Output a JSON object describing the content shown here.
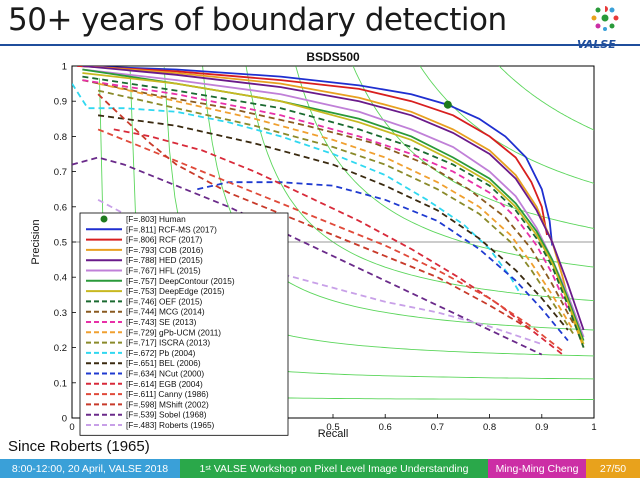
{
  "slide": {
    "title": "50+ years of boundary detection",
    "caption": "Since Roberts (1965)",
    "logo_text": "VALSE"
  },
  "footer": {
    "date": "8:00-12:00, 20 April, VALSE 2018",
    "workshop_prefix": "1",
    "workshop_sup": "st",
    "workshop_rest": " VALSE Workshop on Pixel Level Image Understanding",
    "author": "Ming-Ming Cheng",
    "page": "27/50",
    "colors": {
      "date": "#3aa0d8",
      "workshop": "#2aa84a",
      "author": "#cc2ea5",
      "page": "#e8a21c"
    }
  },
  "chart_data": {
    "type": "line",
    "title": "BSDS500",
    "xlabel": "Recall",
    "ylabel": "Precision",
    "xlim": [
      0,
      1
    ],
    "ylim": [
      0,
      1
    ],
    "xticks": [
      "0",
      "0.1",
      "0.2",
      "0.3",
      "0.4",
      "0.5",
      "0.6",
      "0.7",
      "0.8",
      "0.9",
      "1"
    ],
    "yticks": [
      "0",
      "0.1",
      "0.2",
      "0.3",
      "0.4",
      "0.5",
      "0.6",
      "0.7",
      "0.8",
      "0.9",
      "1"
    ],
    "iso_f_levels": [
      0.1,
      0.2,
      0.3,
      0.4,
      0.5,
      0.6,
      0.7,
      0.8,
      0.9
    ],
    "legend_position": "bottom-left",
    "human_point": {
      "x": 0.72,
      "y": 0.89
    },
    "series": [
      {
        "name": "[F=.803] Human",
        "style": "marker",
        "color": "#1e7a1e",
        "points": []
      },
      {
        "name": "[F=.811] RCF-MS (2017)",
        "style": "solid",
        "color": "#1f2fd0",
        "points": [
          [
            0.01,
            1
          ],
          [
            0.2,
            0.99
          ],
          [
            0.4,
            0.97
          ],
          [
            0.55,
            0.945
          ],
          [
            0.65,
            0.92
          ],
          [
            0.72,
            0.89
          ],
          [
            0.78,
            0.85
          ],
          [
            0.83,
            0.8
          ],
          [
            0.87,
            0.74
          ],
          [
            0.9,
            0.65
          ],
          [
            0.915,
            0.56
          ],
          [
            0.92,
            0.49
          ]
        ]
      },
      {
        "name": "[F=.806] RCF (2017)",
        "style": "solid",
        "color": "#d81f1f",
        "points": [
          [
            0.01,
            1
          ],
          [
            0.2,
            0.985
          ],
          [
            0.4,
            0.96
          ],
          [
            0.55,
            0.935
          ],
          [
            0.65,
            0.9
          ],
          [
            0.73,
            0.86
          ],
          [
            0.8,
            0.8
          ],
          [
            0.85,
            0.74
          ],
          [
            0.88,
            0.67
          ],
          [
            0.9,
            0.6
          ],
          [
            0.91,
            0.52
          ]
        ]
      },
      {
        "name": "[F=.793] COB (2016)",
        "style": "solid",
        "color": "#e8a020",
        "points": [
          [
            0.02,
            1
          ],
          [
            0.2,
            0.98
          ],
          [
            0.4,
            0.95
          ],
          [
            0.55,
            0.91
          ],
          [
            0.65,
            0.87
          ],
          [
            0.73,
            0.82
          ],
          [
            0.8,
            0.76
          ],
          [
            0.85,
            0.69
          ],
          [
            0.89,
            0.6
          ],
          [
            0.92,
            0.5
          ],
          [
            0.94,
            0.4
          ],
          [
            0.96,
            0.28
          ],
          [
            0.98,
            0.2
          ]
        ]
      },
      {
        "name": "[F=.788] HED (2015)",
        "style": "solid",
        "color": "#6a1a8a",
        "points": [
          [
            0.02,
            1
          ],
          [
            0.2,
            0.975
          ],
          [
            0.4,
            0.94
          ],
          [
            0.55,
            0.9
          ],
          [
            0.65,
            0.86
          ],
          [
            0.73,
            0.81
          ],
          [
            0.8,
            0.75
          ],
          [
            0.85,
            0.68
          ],
          [
            0.89,
            0.59
          ],
          [
            0.92,
            0.5
          ],
          [
            0.95,
            0.38
          ],
          [
            0.98,
            0.25
          ]
        ]
      },
      {
        "name": "[F=.767] HFL (2015)",
        "style": "solid",
        "color": "#c080d8",
        "points": [
          [
            0.02,
            0.99
          ],
          [
            0.2,
            0.96
          ],
          [
            0.4,
            0.92
          ],
          [
            0.55,
            0.87
          ],
          [
            0.65,
            0.82
          ],
          [
            0.73,
            0.77
          ],
          [
            0.8,
            0.7
          ],
          [
            0.85,
            0.63
          ],
          [
            0.89,
            0.54
          ],
          [
            0.92,
            0.45
          ],
          [
            0.95,
            0.35
          ],
          [
            0.98,
            0.23
          ]
        ]
      },
      {
        "name": "[F=.757] DeepContour (2015)",
        "style": "solid",
        "color": "#2a9a3a",
        "points": [
          [
            0.02,
            0.99
          ],
          [
            0.2,
            0.95
          ],
          [
            0.4,
            0.9
          ],
          [
            0.55,
            0.85
          ],
          [
            0.65,
            0.8
          ],
          [
            0.73,
            0.74
          ],
          [
            0.8,
            0.68
          ],
          [
            0.85,
            0.61
          ],
          [
            0.89,
            0.53
          ],
          [
            0.92,
            0.45
          ],
          [
            0.95,
            0.34
          ],
          [
            0.98,
            0.22
          ]
        ]
      },
      {
        "name": "[F=.753] DeepEdge (2015)",
        "style": "solid",
        "color": "#c8b820",
        "points": [
          [
            0.02,
            0.98
          ],
          [
            0.2,
            0.95
          ],
          [
            0.4,
            0.9
          ],
          [
            0.55,
            0.84
          ],
          [
            0.65,
            0.79
          ],
          [
            0.73,
            0.73
          ],
          [
            0.8,
            0.67
          ],
          [
            0.85,
            0.6
          ],
          [
            0.89,
            0.52
          ],
          [
            0.92,
            0.44
          ],
          [
            0.95,
            0.33
          ],
          [
            0.98,
            0.21
          ]
        ]
      },
      {
        "name": "[F=.746] OEF (2015)",
        "style": "dashed",
        "color": "#1a6a30",
        "points": [
          [
            0.02,
            0.97
          ],
          [
            0.2,
            0.93
          ],
          [
            0.4,
            0.88
          ],
          [
            0.55,
            0.82
          ],
          [
            0.65,
            0.77
          ],
          [
            0.73,
            0.72
          ],
          [
            0.8,
            0.66
          ],
          [
            0.85,
            0.59
          ],
          [
            0.89,
            0.51
          ],
          [
            0.92,
            0.43
          ],
          [
            0.95,
            0.32
          ],
          [
            0.98,
            0.2
          ]
        ]
      },
      {
        "name": "[F=.744] MCG (2014)",
        "style": "dashed",
        "color": "#8a5a20",
        "points": [
          [
            0.02,
            0.96
          ],
          [
            0.15,
            0.92
          ],
          [
            0.3,
            0.88
          ],
          [
            0.45,
            0.83
          ],
          [
            0.58,
            0.78
          ],
          [
            0.68,
            0.72
          ],
          [
            0.76,
            0.65
          ],
          [
            0.83,
            0.57
          ],
          [
            0.88,
            0.48
          ],
          [
            0.92,
            0.38
          ],
          [
            0.96,
            0.27
          ]
        ]
      },
      {
        "name": "[F=.743] SE (2013)",
        "style": "dashed",
        "color": "#e830a8",
        "points": [
          [
            0.02,
            0.96
          ],
          [
            0.2,
            0.92
          ],
          [
            0.4,
            0.86
          ],
          [
            0.55,
            0.8
          ],
          [
            0.65,
            0.75
          ],
          [
            0.73,
            0.7
          ],
          [
            0.8,
            0.64
          ],
          [
            0.85,
            0.57
          ],
          [
            0.89,
            0.49
          ],
          [
            0.92,
            0.41
          ],
          [
            0.95,
            0.31
          ]
        ]
      },
      {
        "name": "[F=.729] gPb-UCM (2011)",
        "style": "dashed",
        "color": "#f0a030",
        "points": [
          [
            0.05,
            0.95
          ],
          [
            0.2,
            0.9
          ],
          [
            0.35,
            0.85
          ],
          [
            0.5,
            0.79
          ],
          [
            0.6,
            0.74
          ],
          [
            0.7,
            0.67
          ],
          [
            0.78,
            0.6
          ],
          [
            0.84,
            0.52
          ],
          [
            0.88,
            0.44
          ],
          [
            0.92,
            0.35
          ],
          [
            0.96,
            0.25
          ]
        ]
      },
      {
        "name": "[F=.717] ISCRA (2013)",
        "style": "dashed",
        "color": "#8a8a2a",
        "points": [
          [
            0.05,
            0.93
          ],
          [
            0.2,
            0.88
          ],
          [
            0.35,
            0.83
          ],
          [
            0.5,
            0.77
          ],
          [
            0.6,
            0.72
          ],
          [
            0.7,
            0.65
          ],
          [
            0.78,
            0.58
          ],
          [
            0.84,
            0.5
          ],
          [
            0.88,
            0.42
          ],
          [
            0.92,
            0.33
          ],
          [
            0.96,
            0.24
          ]
        ]
      },
      {
        "name": "[F=.672] Pb (2004)",
        "style": "dashed",
        "color": "#30d8f0",
        "points": [
          [
            0.0,
            0.95
          ],
          [
            0.03,
            0.88
          ],
          [
            0.1,
            0.88
          ],
          [
            0.2,
            0.87
          ],
          [
            0.3,
            0.84
          ],
          [
            0.4,
            0.8
          ],
          [
            0.5,
            0.75
          ],
          [
            0.6,
            0.69
          ],
          [
            0.68,
            0.62
          ],
          [
            0.75,
            0.55
          ],
          [
            0.8,
            0.48
          ],
          [
            0.84,
            0.4
          ],
          [
            0.86,
            0.35
          ]
        ]
      },
      {
        "name": "[F=.651] BEL (2006)",
        "style": "dashed",
        "color": "#3a2a10",
        "points": [
          [
            0.05,
            0.86
          ],
          [
            0.2,
            0.83
          ],
          [
            0.35,
            0.78
          ],
          [
            0.5,
            0.72
          ],
          [
            0.6,
            0.66
          ],
          [
            0.7,
            0.59
          ],
          [
            0.78,
            0.51
          ],
          [
            0.85,
            0.42
          ],
          [
            0.9,
            0.34
          ],
          [
            0.95,
            0.25
          ]
        ]
      },
      {
        "name": "[F=.634] NCut (2000)",
        "style": "dashed",
        "color": "#1f3ad0",
        "points": [
          [
            0.24,
            0.65
          ],
          [
            0.3,
            0.67
          ],
          [
            0.4,
            0.67
          ],
          [
            0.5,
            0.66
          ],
          [
            0.6,
            0.62
          ],
          [
            0.7,
            0.56
          ],
          [
            0.78,
            0.48
          ],
          [
            0.85,
            0.39
          ],
          [
            0.9,
            0.31
          ],
          [
            0.95,
            0.22
          ]
        ]
      },
      {
        "name": "[F=.614] EGB (2004)",
        "style": "dashed",
        "color": "#d82a3a",
        "points": [
          [
            0.08,
            0.82
          ],
          [
            0.15,
            0.8
          ],
          [
            0.25,
            0.76
          ],
          [
            0.35,
            0.7
          ],
          [
            0.45,
            0.63
          ],
          [
            0.55,
            0.56
          ],
          [
            0.65,
            0.48
          ],
          [
            0.74,
            0.4
          ],
          [
            0.82,
            0.32
          ],
          [
            0.88,
            0.25
          ],
          [
            0.94,
            0.18
          ]
        ]
      },
      {
        "name": "[F=.611] Canny (1986)",
        "style": "dashed",
        "color": "#e04a3a",
        "points": [
          [
            0.05,
            0.82
          ],
          [
            0.1,
            0.79
          ],
          [
            0.2,
            0.73
          ],
          [
            0.3,
            0.67
          ],
          [
            0.4,
            0.61
          ],
          [
            0.5,
            0.55
          ],
          [
            0.6,
            0.49
          ],
          [
            0.7,
            0.42
          ],
          [
            0.8,
            0.34
          ],
          [
            0.88,
            0.26
          ],
          [
            0.94,
            0.19
          ]
        ]
      },
      {
        "name": "[F=.598] MShift (2002)",
        "style": "dashed",
        "color": "#c83a2a",
        "points": [
          [
            0.05,
            0.92
          ],
          [
            0.1,
            0.85
          ],
          [
            0.15,
            0.78
          ],
          [
            0.2,
            0.72
          ],
          [
            0.3,
            0.64
          ],
          [
            0.4,
            0.58
          ],
          [
            0.5,
            0.52
          ],
          [
            0.6,
            0.46
          ],
          [
            0.7,
            0.4
          ],
          [
            0.8,
            0.32
          ],
          [
            0.88,
            0.25
          ]
        ]
      },
      {
        "name": "[F=.539] Sobel (1968)",
        "style": "dashed",
        "color": "#6a2a8a",
        "points": [
          [
            0.0,
            0.72
          ],
          [
            0.05,
            0.74
          ],
          [
            0.1,
            0.72
          ],
          [
            0.2,
            0.66
          ],
          [
            0.3,
            0.6
          ],
          [
            0.4,
            0.53
          ],
          [
            0.5,
            0.46
          ],
          [
            0.6,
            0.39
          ],
          [
            0.7,
            0.32
          ],
          [
            0.8,
            0.25
          ],
          [
            0.9,
            0.18
          ]
        ]
      },
      {
        "name": "[F=.483] Roberts (1965)",
        "style": "dashed",
        "color": "#c8a0e8",
        "points": [
          [
            0.05,
            0.62
          ],
          [
            0.1,
            0.58
          ],
          [
            0.2,
            0.52
          ],
          [
            0.3,
            0.46
          ],
          [
            0.4,
            0.41
          ],
          [
            0.5,
            0.37
          ],
          [
            0.6,
            0.33
          ],
          [
            0.7,
            0.3
          ],
          [
            0.8,
            0.26
          ],
          [
            0.9,
            0.21
          ]
        ]
      }
    ]
  }
}
